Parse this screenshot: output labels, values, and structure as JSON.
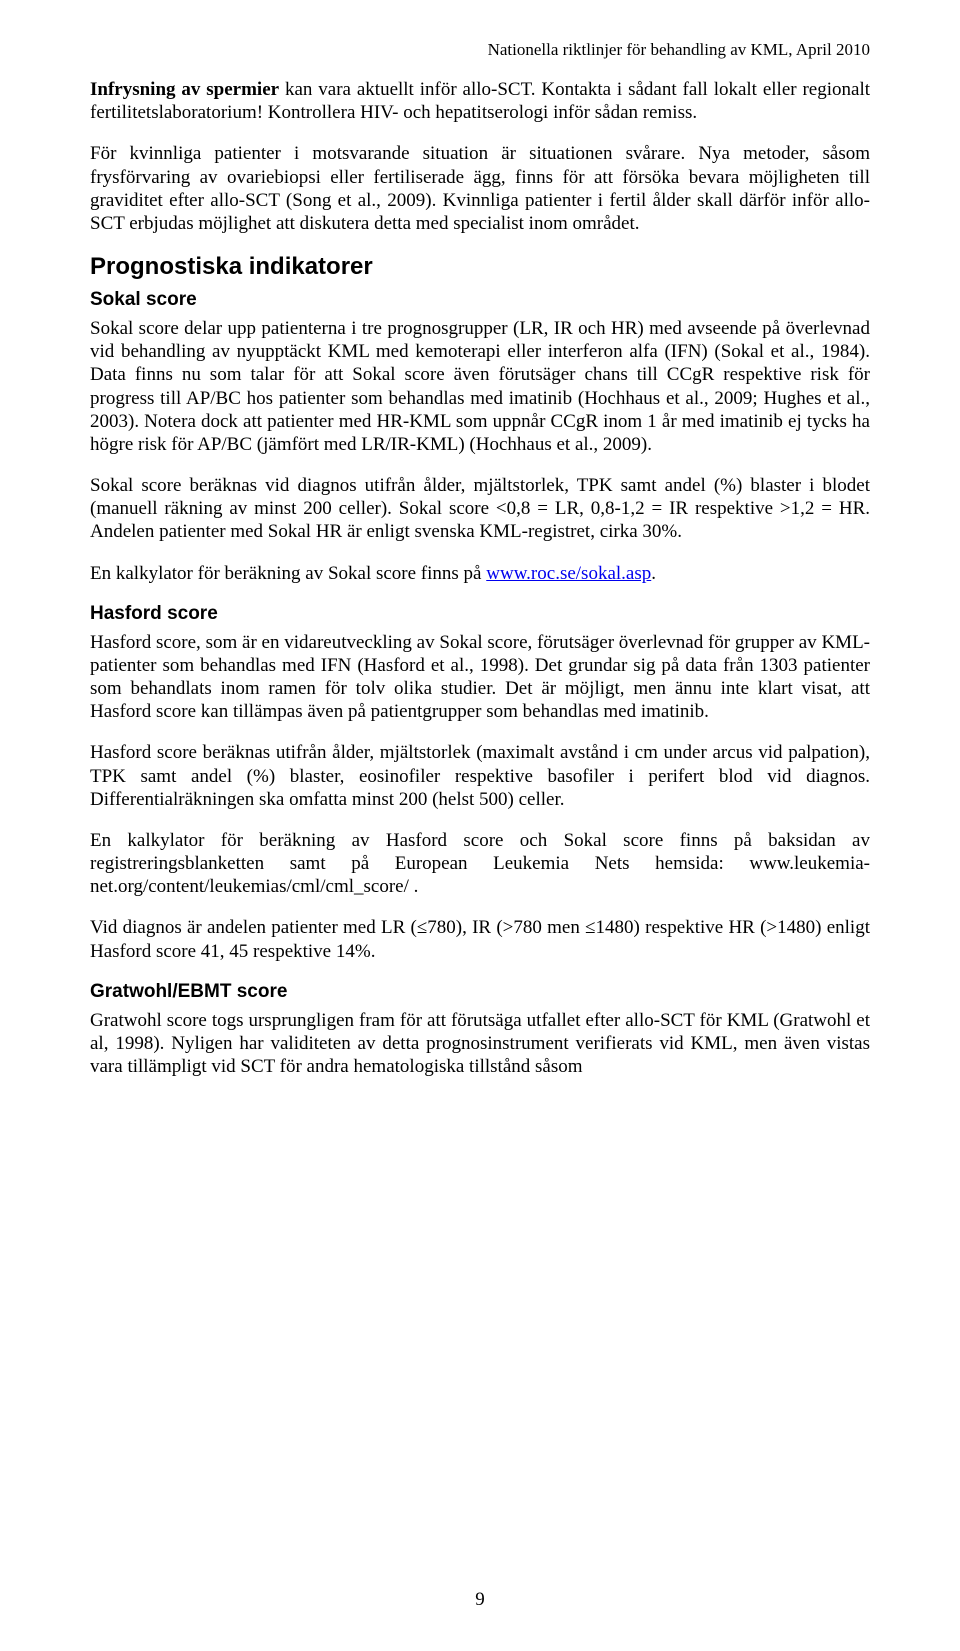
{
  "runningHeader": "Nationella riktlinjer för behandling av KML, April 2010",
  "intro": {
    "boldLead": "Infrysning av spermier",
    "p1_rest": " kan vara aktuellt inför allo-SCT. Kontakta i sådant fall lokalt eller regionalt fertilitetslaboratorium! Kontrollera HIV- och hepatitserologi inför sådan remiss.",
    "p2": "För kvinnliga patienter i motsvarande situation är situationen svårare. Nya metoder, såsom frysförvaring av ovariebiopsi eller fertiliserade ägg, finns för att försöka bevara möjligheten till graviditet efter allo-SCT (Song et al., 2009). Kvinnliga patienter i fertil ålder skall därför inför allo-SCT erbjudas möjlighet att diskutera detta med specialist inom området."
  },
  "h2_prognostiska": "Prognostiska indikatorer",
  "sokal": {
    "heading": "Sokal score",
    "p1": "Sokal score delar upp patienterna i tre prognosgrupper (LR, IR och HR) med avseende på överlevnad vid behandling av nyupptäckt KML med kemoterapi eller interferon alfa (IFN) (Sokal et al., 1984). Data finns nu som talar för att Sokal score även förutsäger chans till CCgR respektive risk för progress till AP/BC hos patienter som behandlas med imatinib (Hochhaus et al., 2009; Hughes et al., 2003). Notera dock att patienter med HR-KML som uppnår CCgR inom 1 år med imatinib ej tycks ha högre risk för AP/BC (jämfört med LR/IR-KML) (Hochhaus et al., 2009).",
    "p2": "Sokal score beräknas vid diagnos utifrån ålder, mjältstorlek, TPK samt andel (%) blaster i blodet (manuell räkning av minst 200 celler). Sokal score <0,8 = LR, 0,8-1,2 = IR respektive >1,2 = HR. Andelen patienter med Sokal HR är enligt svenska KML-registret, cirka 30%.",
    "p3_pre": "En kalkylator för beräkning av Sokal score finns på ",
    "p3_link": "www.roc.se/sokal.asp",
    "p3_post": "."
  },
  "hasford": {
    "heading": "Hasford score",
    "p1": "Hasford score, som är en vidareutveckling av Sokal score, förutsäger överlevnad för grupper av KML-patienter som behandlas med IFN (Hasford et al., 1998). Det grundar sig på data från 1303 patienter som behandlats inom ramen för tolv olika studier. Det är möjligt, men ännu inte klart visat, att Hasford score kan tillämpas även på patientgrupper som behandlas med imatinib.",
    "p2": "Hasford score beräknas utifrån ålder, mjältstorlek (maximalt avstånd i cm under arcus vid palpation), TPK samt andel (%) blaster, eosinofiler respektive basofiler i perifert blod vid diagnos. Differentialräkningen ska omfatta minst 200 (helst 500) celler.",
    "p3": "En kalkylator för beräkning av Hasford score och Sokal score finns på baksidan av registreringsblanketten samt på European Leukemia Nets hemsida: www.leukemia-net.org/content/leukemias/cml/cml_score/ .",
    "p4": "Vid diagnos är andelen patienter med LR (≤780), IR (>780 men ≤1480) respektive HR (>1480) enligt Hasford score 41, 45 respektive 14%."
  },
  "gratwohl": {
    "heading": "Gratwohl/EBMT score",
    "p1": "Gratwohl score togs ursprungligen fram för att förutsäga utfallet efter allo-SCT för KML (Gratwohl et al, 1998). Nyligen har validiteten av detta prognosinstrument verifierats vid KML, men även vistas vara tillämpligt vid SCT för andra hematologiska tillstånd såsom"
  },
  "pageNumber": "9",
  "link_url": "www.roc.se/sokal.asp"
}
